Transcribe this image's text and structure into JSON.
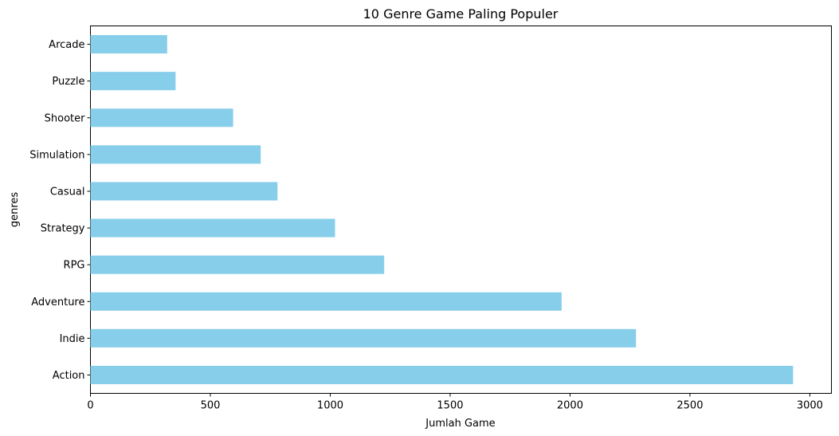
{
  "chart_data": {
    "type": "bar",
    "orientation": "horizontal",
    "title": "10 Genre Game Paling Populer",
    "xlabel": "Jumlah Game",
    "ylabel": "genres",
    "categories": [
      "Action",
      "Indie",
      "Adventure",
      "RPG",
      "Strategy",
      "Casual",
      "Simulation",
      "Shooter",
      "Puzzle",
      "Arcade"
    ],
    "values": [
      2930,
      2275,
      1965,
      1225,
      1020,
      780,
      710,
      595,
      355,
      320
    ],
    "xlim": [
      0,
      3090
    ],
    "xticks": [
      0,
      500,
      1000,
      1500,
      2000,
      2500,
      3000
    ],
    "bar_color": "#87ceeb",
    "grid": false,
    "legend": "none"
  }
}
